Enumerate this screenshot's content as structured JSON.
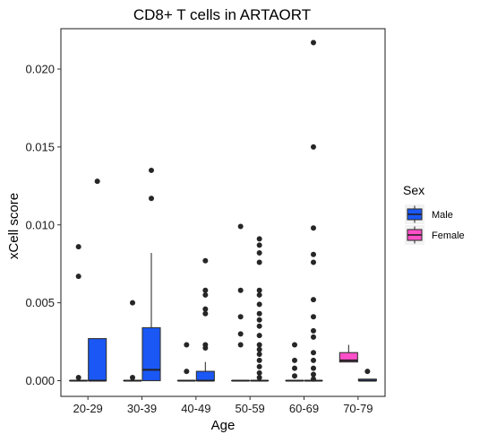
{
  "chart_data": {
    "type": "boxplot",
    "title": "CD8+ T cells in ARTAORT",
    "xlabel": "Age",
    "ylabel": "xCell score",
    "ylim": [
      -0.00045,
      0.0226
    ],
    "yticks": [
      "0.000",
      "0.005",
      "0.010",
      "0.015",
      "0.020"
    ],
    "ytick_values": [
      0,
      0.005,
      0.01,
      0.015,
      0.02
    ],
    "categories": [
      "20-29",
      "30-39",
      "40-49",
      "50-59",
      "60-69",
      "70-79"
    ],
    "grid": false,
    "legend": {
      "title": "Sex",
      "position": "right",
      "entries": [
        {
          "label": "Male",
          "color": "#1a57f5"
        },
        {
          "label": "Female",
          "color": "#ff4fc8"
        }
      ]
    },
    "series": [
      {
        "name": "Female",
        "color": "#ff4fc8",
        "boxes": [
          {
            "category": "20-29",
            "q1": 0,
            "median": 0,
            "q3": 0,
            "lower": 0,
            "upper": 0,
            "outliers": [
              0.0086,
              0.0067,
              0.0002
            ]
          },
          {
            "category": "30-39",
            "q1": 0,
            "median": 0,
            "q3": 0,
            "lower": 0,
            "upper": 0,
            "outliers": [
              0.005,
              0.0002
            ]
          },
          {
            "category": "40-49",
            "q1": 0,
            "median": 0,
            "q3": 0,
            "lower": 0,
            "upper": 0,
            "outliers": [
              0.0023,
              0.0006
            ]
          },
          {
            "category": "50-59",
            "q1": 0,
            "median": 0,
            "q3": 0,
            "lower": 0,
            "upper": 0,
            "outliers": [
              0.0099,
              0.0058,
              0.0041,
              0.003,
              0.0023
            ]
          },
          {
            "category": "60-69",
            "q1": 0,
            "median": 0,
            "q3": 0,
            "lower": 0,
            "upper": 0,
            "outliers": [
              0.0023,
              0.0013,
              0.0008,
              0.0003
            ]
          },
          {
            "category": "70-79",
            "q1": 0.0012,
            "median": 0.0013,
            "q3": 0.0018,
            "lower": 0.0012,
            "upper": 0.0023,
            "outliers": []
          }
        ]
      },
      {
        "name": "Male",
        "color": "#1a57f5",
        "boxes": [
          {
            "category": "20-29",
            "q1": 0,
            "median": 0,
            "q3": 0.0027,
            "lower": 0,
            "upper": 0.0027,
            "outliers": [
              0.0128
            ]
          },
          {
            "category": "30-39",
            "q1": 0,
            "median": 0.0007,
            "q3": 0.0034,
            "lower": 0,
            "upper": 0.0082,
            "outliers": [
              0.0135,
              0.0117
            ]
          },
          {
            "category": "40-49",
            "q1": 0,
            "median": 0,
            "q3": 0.0006,
            "lower": 0,
            "upper": 0.0012,
            "outliers": [
              0.0077,
              0.0058,
              0.0055,
              0.0046,
              0.0043,
              0.0023,
              0.0021
            ]
          },
          {
            "category": "50-59",
            "q1": 0,
            "median": 0,
            "q3": 0,
            "lower": 0,
            "upper": 0,
            "outliers": [
              0.0091,
              0.0087,
              0.0082,
              0.0076,
              0.0058,
              0.0055,
              0.0049,
              0.0043,
              0.0039,
              0.0035,
              0.0029,
              0.0023,
              0.002,
              0.0017,
              0.0013,
              0.0009,
              0.0005,
              0.0002
            ]
          },
          {
            "category": "60-69",
            "q1": 0,
            "median": 0,
            "q3": 0,
            "lower": 0,
            "upper": 0,
            "outliers": [
              0.0217,
              0.015,
              0.0098,
              0.0081,
              0.0076,
              0.0052,
              0.0041,
              0.0032,
              0.0028,
              0.0018,
              0.0013,
              0.0008,
              0.0004,
              0.0001
            ]
          },
          {
            "category": "70-79",
            "q1": 0,
            "median": 0,
            "q3": 0.0001,
            "lower": 0,
            "upper": 0.0001,
            "outliers": [
              0.0006
            ]
          }
        ]
      }
    ]
  }
}
